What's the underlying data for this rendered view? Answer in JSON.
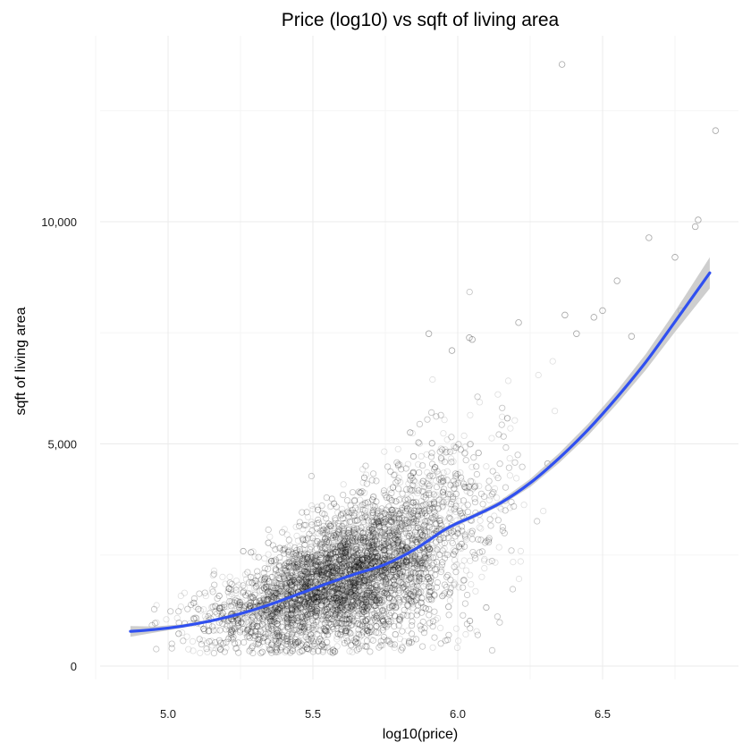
{
  "chart_data": {
    "type": "scatter",
    "title": "Price (log10) vs sqft of living area",
    "xlabel": "log10(price)",
    "ylabel": "sqft of living area",
    "xlim": [
      4.78,
      6.94
    ],
    "ylim": [
      -300,
      14300
    ],
    "x_ticks": [
      5.0,
      5.5,
      6.0,
      6.5
    ],
    "x_tick_labels": [
      "5.0",
      "5.5",
      "6.0",
      "6.5"
    ],
    "x_minor_ticks": [
      4.75,
      5.25,
      5.75,
      6.25,
      6.75
    ],
    "y_ticks": [
      0,
      5000,
      10000
    ],
    "y_tick_labels": [
      "0",
      "5,000",
      "10,000"
    ],
    "y_minor_ticks": [
      2500,
      7500,
      12500
    ],
    "grid": true,
    "colors": {
      "points": "#000000",
      "smooth_line": "#3050f0",
      "ribbon": "#bdbdbd",
      "grid_major": "#ebebeb",
      "grid_minor": "#f5f5f5"
    },
    "series": [
      {
        "type": "points",
        "description_note": "dense cloud (~21,000 points, open circles, low alpha)",
        "outliers": [
          {
            "x": 6.36,
            "y": 13540
          },
          {
            "x": 6.89,
            "y": 12050
          },
          {
            "x": 6.83,
            "y": 10040
          },
          {
            "x": 6.82,
            "y": 9890
          },
          {
            "x": 6.66,
            "y": 9640
          },
          {
            "x": 6.75,
            "y": 9200
          },
          {
            "x": 6.77,
            "y": 8000
          },
          {
            "x": 6.55,
            "y": 8670
          },
          {
            "x": 6.5,
            "y": 8000
          },
          {
            "x": 6.47,
            "y": 7850
          },
          {
            "x": 6.37,
            "y": 7900
          },
          {
            "x": 6.41,
            "y": 7480
          },
          {
            "x": 6.21,
            "y": 7730
          },
          {
            "x": 5.9,
            "y": 7480
          },
          {
            "x": 6.04,
            "y": 7390
          },
          {
            "x": 6.05,
            "y": 7350
          },
          {
            "x": 5.98,
            "y": 7100
          },
          {
            "x": 6.6,
            "y": 7420
          }
        ]
      },
      {
        "type": "smooth",
        "x": [
          4.87,
          4.95,
          5.05,
          5.15,
          5.25,
          5.35,
          5.45,
          5.55,
          5.65,
          5.75,
          5.85,
          5.95,
          6.0,
          6.05,
          6.15,
          6.25,
          6.35,
          6.45,
          6.55,
          6.65,
          6.75,
          6.87
        ],
        "y": [
          780,
          820,
          900,
          1020,
          1180,
          1380,
          1620,
          1860,
          2080,
          2290,
          2620,
          3050,
          3220,
          3360,
          3680,
          4120,
          4680,
          5320,
          6050,
          6850,
          7750,
          8850
        ],
        "se_upper": [
          900,
          890,
          940,
          1050,
          1210,
          1410,
          1650,
          1890,
          2110,
          2320,
          2660,
          3100,
          3270,
          3410,
          3740,
          4210,
          4790,
          5450,
          6200,
          7030,
          7980,
          9200
        ],
        "se_lower": [
          660,
          750,
          860,
          990,
          1150,
          1350,
          1590,
          1830,
          2050,
          2260,
          2580,
          3000,
          3170,
          3310,
          3620,
          4030,
          4570,
          5190,
          5900,
          6670,
          7520,
          8500
        ]
      }
    ]
  }
}
